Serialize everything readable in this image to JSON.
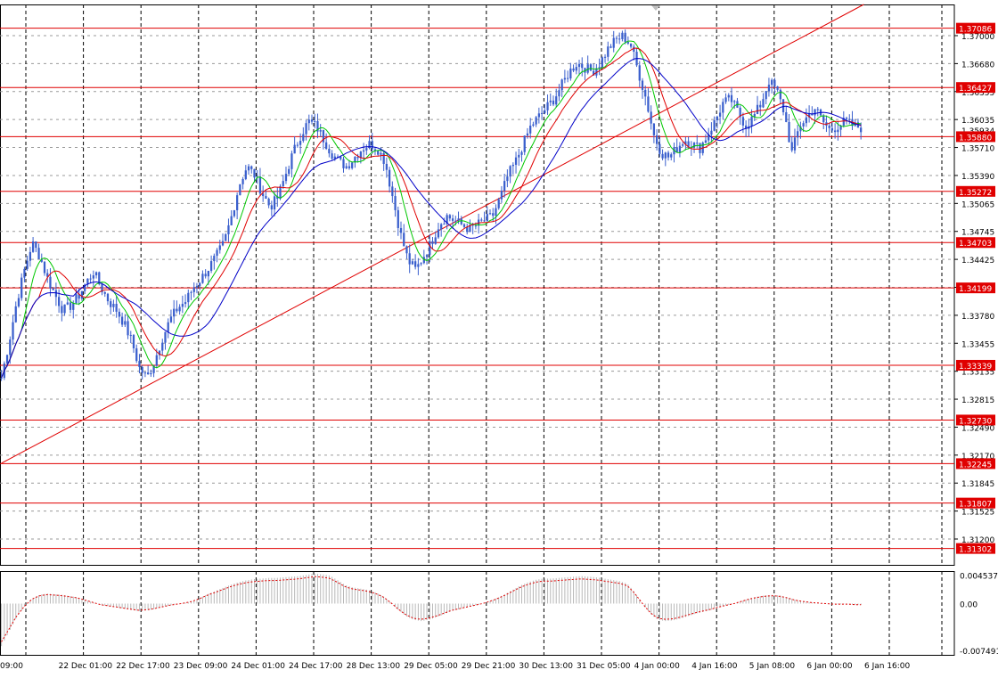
{
  "colors": {
    "background": "#ffffff",
    "grid": "#9a9a9a",
    "candle": "#3a5fcd",
    "ma_fast": "#00c800",
    "ma_mid": "#e00000",
    "ma_slow": "#0000c8",
    "level_line": "#e00000",
    "level_label_bg": "#e00000",
    "level_label_text": "#ffffff",
    "trendline": "#e00000",
    "histogram": "#b8b8b8",
    "signal": "#e00000",
    "axis_text": "#000000",
    "frame": "#000000"
  },
  "chart_data": {
    "type": "candlestick",
    "instrument_note": "",
    "price_axis": {
      "ylim": [
        1.3112,
        1.3735
      ],
      "ticks": [
        "1.37000",
        "1.36680",
        "1.36355",
        "1.36035",
        "1.35710",
        "1.35390",
        "1.35065",
        "1.34745",
        "1.34425",
        "1.34100",
        "1.33780",
        "1.33455",
        "1.33135",
        "1.32815",
        "1.32490",
        "1.32170",
        "1.31845",
        "1.31525",
        "1.31200"
      ],
      "hidden_tick": "1.35934"
    },
    "time_axis": {
      "labels": [
        "09:00",
        "22 Dec 01:00",
        "22 Dec 17:00",
        "23 Dec 09:00",
        "24 Dec 01:00",
        "24 Dec 17:00",
        "28 Dec 13:00",
        "29 Dec 05:00",
        "29 Dec 21:00",
        "30 Dec 13:00",
        "31 Dec 05:00",
        "4 Jan 00:00",
        "4 Jan 16:00",
        "5 Jan 08:00",
        "6 Jan 00:00",
        "6 Jan 16:00"
      ]
    },
    "levels": [
      "1.37086",
      "1.36427",
      "1.35880",
      "1.35272",
      "1.34703",
      "1.34199",
      "1.33339",
      "1.32730",
      "1.32245",
      "1.31807",
      "1.31302"
    ],
    "trendline": {
      "from": {
        "bar": 0,
        "price": 1.3225
      },
      "to": {
        "bar": 300,
        "price": 1.3735
      }
    },
    "closes": [
      1.332,
      1.336,
      1.3405,
      1.344,
      1.347,
      1.3455,
      1.343,
      1.3412,
      1.3395,
      1.34,
      1.341,
      1.3425,
      1.3438,
      1.342,
      1.3405,
      1.3395,
      1.338,
      1.336,
      1.333,
      1.332,
      1.334,
      1.3365,
      1.3385,
      1.3398,
      1.3405,
      1.342,
      1.343,
      1.3442,
      1.3455,
      1.347,
      1.35,
      1.3535,
      1.3555,
      1.3545,
      1.3525,
      1.351,
      1.352,
      1.3545,
      1.357,
      1.359,
      1.3605,
      1.36,
      1.3585,
      1.357,
      1.356,
      1.3555,
      1.3565,
      1.3575,
      1.358,
      1.3575,
      1.356,
      1.352,
      1.348,
      1.345,
      1.344,
      1.3455,
      1.347,
      1.349,
      1.35,
      1.3495,
      1.349,
      1.3485,
      1.349,
      1.3495,
      1.35,
      1.352,
      1.3545,
      1.356,
      1.358,
      1.36,
      1.361,
      1.362,
      1.363,
      1.3645,
      1.366,
      1.367,
      1.3665,
      1.366,
      1.367,
      1.3685,
      1.3695,
      1.37,
      1.369,
      1.366,
      1.363,
      1.359,
      1.357,
      1.3565,
      1.3575,
      1.3585,
      1.358,
      1.3575,
      1.359,
      1.3605,
      1.3625,
      1.363,
      1.3615,
      1.36,
      1.361,
      1.3625,
      1.365,
      1.364,
      1.3615,
      1.357,
      1.36,
      1.361,
      1.362,
      1.3605,
      1.3595,
      1.36,
      1.3605,
      1.36,
      1.3598
    ],
    "indicator": {
      "axis_ticks": [
        "0.004537",
        "0.00",
        "-0.007491"
      ],
      "ylim": [
        -0.0082,
        0.0052
      ],
      "histogram": [
        -0.0068,
        -0.0045,
        -0.0022,
        -0.0005,
        0.0008,
        0.0014,
        0.0016,
        0.0015,
        0.0014,
        0.0012,
        0.001,
        0.0006,
        0.0002,
        -0.0002,
        -0.0004,
        -0.0006,
        -0.0008,
        -0.001,
        -0.0012,
        -0.0011,
        -0.0009,
        -0.0006,
        -0.0003,
        -0.0001,
        0.0001,
        0.0004,
        0.0009,
        0.0015,
        0.002,
        0.0025,
        0.003,
        0.0034,
        0.0037,
        0.0039,
        0.004,
        0.0041,
        0.0041,
        0.0042,
        0.0043,
        0.0044,
        0.0046,
        0.0048,
        0.0047,
        0.0045,
        0.0038,
        0.003,
        0.0026,
        0.0024,
        0.0022,
        0.0018,
        0.0012,
        0.0002,
        -0.001,
        -0.002,
        -0.0026,
        -0.0028,
        -0.0026,
        -0.0022,
        -0.0017,
        -0.0012,
        -0.0009,
        -0.0006,
        -0.0003,
        0.0,
        0.0004,
        0.0009,
        0.0015,
        0.0022,
        0.0029,
        0.0034,
        0.0038,
        0.004,
        0.004,
        0.0041,
        0.0042,
        0.0043,
        0.0044,
        0.0043,
        0.0042,
        0.004,
        0.0038,
        0.0036,
        0.0032,
        0.0018,
        0.0,
        -0.0016,
        -0.0026,
        -0.0028,
        -0.0027,
        -0.0024,
        -0.002,
        -0.0016,
        -0.0013,
        -0.001,
        -0.0006,
        -0.0003,
        0.0,
        0.0004,
        0.0008,
        0.0011,
        0.0013,
        0.0014,
        0.0013,
        0.001,
        0.0006,
        0.0004,
        0.0002,
        0.0001,
        0.0,
        -0.0001,
        -0.0001,
        -0.0001,
        -0.0002
      ]
    }
  }
}
